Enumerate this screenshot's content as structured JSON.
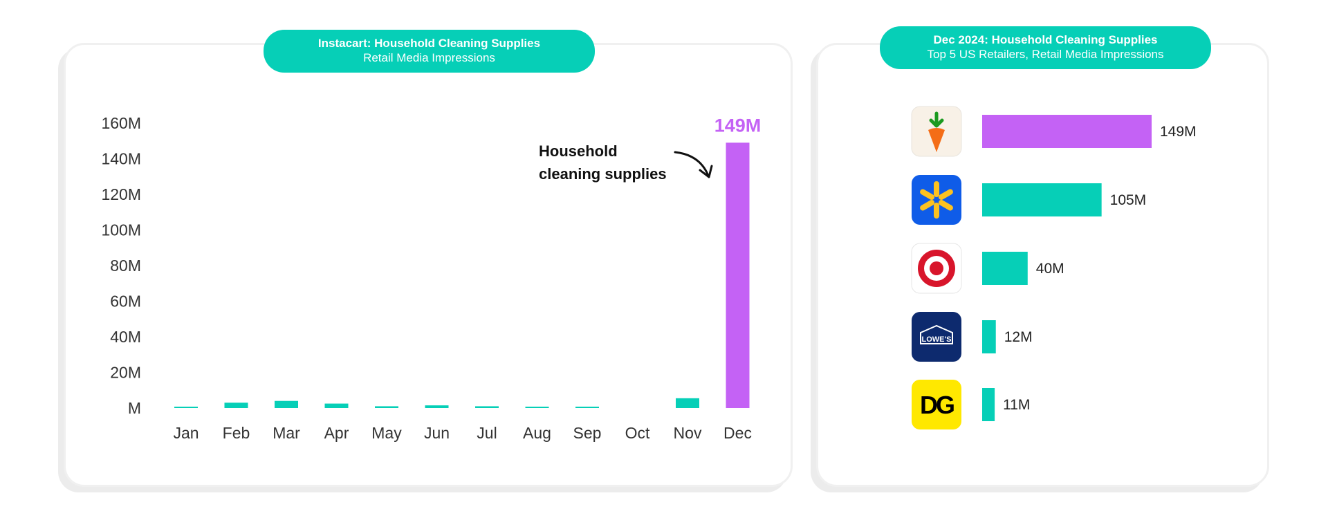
{
  "chart_data": [
    {
      "type": "bar",
      "title": "Instacart: Household Cleaning Supplies",
      "subtitle": "Retail Media Impressions",
      "categories": [
        "Jan",
        "Feb",
        "Mar",
        "Apr",
        "May",
        "Jun",
        "Jul",
        "Aug",
        "Sep",
        "Oct",
        "Nov",
        "Dec"
      ],
      "values": [
        0.5,
        3,
        4,
        2.5,
        1,
        1.5,
        1,
        0.5,
        0.5,
        0,
        5.5,
        149
      ],
      "unit": "M",
      "ylim": [
        0,
        160
      ],
      "yticks": [
        0,
        20,
        40,
        60,
        80,
        100,
        120,
        140,
        160
      ],
      "ytick_labels": [
        "M",
        "20M",
        "40M",
        "60M",
        "80M",
        "100M",
        "120M",
        "140M",
        "160M"
      ],
      "highlight_index": 11,
      "highlight_label": "149M",
      "annotation": [
        "Household",
        "cleaning supplies"
      ],
      "colors": {
        "default": "#06cfb7",
        "highlight": "#c462f5"
      }
    },
    {
      "type": "bar",
      "orientation": "horizontal",
      "title": "Dec 2024: Household Cleaning Supplies",
      "subtitle": "Top 5 US Retailers, Retail Media Impressions",
      "categories": [
        "Instacart",
        "Walmart",
        "Target",
        "Lowe's",
        "Dollar General"
      ],
      "values": [
        149,
        105,
        40,
        12,
        11
      ],
      "value_labels": [
        "149M",
        "105M",
        "40M",
        "12M",
        "11M"
      ],
      "logo_texts": [
        "",
        "",
        "",
        "LOWE'S",
        "DG"
      ],
      "unit": "M",
      "colors": {
        "default": "#06cfb7",
        "highlight": "#c462f5"
      },
      "highlight_index": 0
    }
  ]
}
